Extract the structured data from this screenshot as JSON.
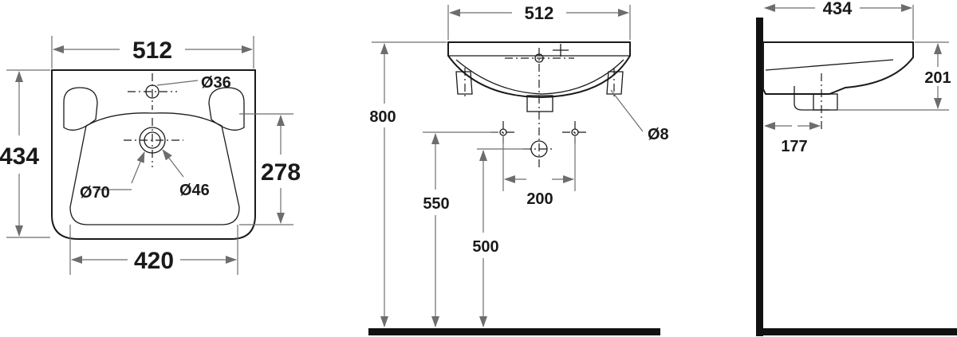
{
  "front_view": {
    "width_top": "512",
    "height": "434",
    "hole_tap": "Ø36",
    "drain_outer": "Ø70",
    "drain_inner": "Ø46",
    "bowl_depth": "278",
    "bottom_width": "420"
  },
  "side_view": {
    "width_top": "512",
    "mount_height": "800",
    "fixing_hole": "Ø8",
    "fixing_distance": "200",
    "fixing_height": "550",
    "drain_height": "500"
  },
  "profile_view": {
    "depth": "434",
    "bowl_height": "201",
    "drain_offset": "177"
  }
}
